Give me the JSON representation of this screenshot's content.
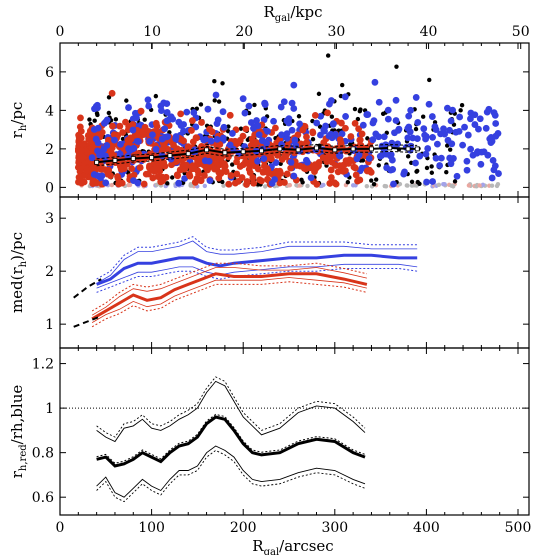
{
  "colors": {
    "red": "#d8341a",
    "blue": "#3540e0",
    "black": "#000000",
    "gray": "#b8b8b8",
    "pink": "#e9a7a0",
    "lavender": "#a3a3e8"
  },
  "top_axis": {
    "label": "R_gal/kpc",
    "ticks": [
      "0",
      "10",
      "20",
      "30",
      "40",
      "50"
    ],
    "values": [
      0,
      10,
      20,
      30,
      40,
      50
    ]
  },
  "bottom_axis": {
    "label": "R_gal/arcsec",
    "ticks": [
      "0",
      "100",
      "200",
      "300",
      "400",
      "500"
    ],
    "values": [
      0,
      100,
      200,
      300,
      400,
      500
    ]
  },
  "chart_data": [
    {
      "type": "scatter",
      "ylabel": "r_h/pc",
      "xlim": [
        0,
        512
      ],
      "ylim": [
        -0.5,
        7.5
      ],
      "yticks": [
        0,
        2,
        4,
        6
      ],
      "series": [
        {
          "color": "red",
          "n": 700,
          "x_range": [
            20,
            340
          ],
          "y_mean": 1.6,
          "y_sd": 0.8
        },
        {
          "color": "blue",
          "n": 420,
          "x_range": [
            35,
            480
          ],
          "y_mean": 2.3,
          "y_sd": 1.1
        },
        {
          "color": "black",
          "n": 320,
          "x_range": [
            30,
            440
          ],
          "y_mean": 2.2,
          "y_sd": 1.4
        }
      ],
      "running_median": {
        "x": [
          40,
          60,
          80,
          100,
          120,
          140,
          160,
          180,
          200,
          220,
          240,
          260,
          280,
          300,
          320,
          340,
          360,
          380,
          390
        ],
        "y": [
          1.3,
          1.4,
          1.5,
          1.55,
          1.65,
          1.75,
          1.95,
          1.8,
          1.85,
          1.9,
          2.0,
          1.95,
          2.05,
          1.95,
          2.0,
          2.0,
          2.05,
          2.0,
          2.0
        ]
      }
    },
    {
      "type": "line",
      "ylabel": "med(r_h)/pc",
      "xlim": [
        0,
        512
      ],
      "ylim": [
        0.55,
        3.4
      ],
      "yticks": [
        1,
        2,
        3
      ],
      "series": [
        {
          "color": "blue",
          "x": [
            40,
            55,
            70,
            85,
            100,
            115,
            130,
            145,
            160,
            175,
            190,
            220,
            250,
            280,
            310,
            340,
            370,
            390
          ],
          "y": [
            1.75,
            1.85,
            2.05,
            2.15,
            2.15,
            2.2,
            2.25,
            2.25,
            2.15,
            2.1,
            2.15,
            2.2,
            2.25,
            2.25,
            2.3,
            2.3,
            2.25,
            2.25
          ],
          "upper": [
            1.85,
            2.0,
            2.3,
            2.45,
            2.45,
            2.5,
            2.55,
            2.65,
            2.45,
            2.4,
            2.4,
            2.45,
            2.55,
            2.55,
            2.55,
            2.5,
            2.5,
            2.5
          ],
          "lower": [
            1.6,
            1.7,
            1.8,
            1.9,
            1.9,
            1.95,
            2.0,
            2.0,
            1.9,
            1.85,
            1.9,
            1.95,
            2.0,
            2.0,
            2.05,
            2.05,
            2.05,
            2.0
          ]
        },
        {
          "color": "red",
          "x": [
            35,
            50,
            65,
            80,
            95,
            110,
            125,
            140,
            155,
            170,
            190,
            220,
            250,
            280,
            310,
            335
          ],
          "y": [
            1.1,
            1.25,
            1.4,
            1.55,
            1.45,
            1.5,
            1.65,
            1.75,
            1.85,
            1.95,
            1.9,
            1.9,
            1.95,
            1.95,
            1.85,
            1.75
          ],
          "upper": [
            1.25,
            1.4,
            1.6,
            1.75,
            1.7,
            1.75,
            1.85,
            1.95,
            2.05,
            2.15,
            2.15,
            2.1,
            2.1,
            2.15,
            2.05,
            1.95
          ],
          "lower": [
            0.95,
            1.1,
            1.2,
            1.35,
            1.25,
            1.3,
            1.45,
            1.55,
            1.65,
            1.75,
            1.75,
            1.75,
            1.8,
            1.75,
            1.7,
            1.6
          ]
        },
        {
          "color": "black",
          "style": "dashed",
          "x": [
            15,
            30,
            45
          ],
          "y": [
            1.5,
            1.7,
            1.85
          ]
        },
        {
          "color": "black",
          "style": "dashed",
          "x": [
            15,
            30,
            45
          ],
          "y": [
            0.95,
            1.05,
            1.15
          ]
        }
      ]
    },
    {
      "type": "line",
      "ylabel": "r_h,red/r_h,blue",
      "xlim": [
        0,
        512
      ],
      "ylim": [
        0.52,
        1.27
      ],
      "yticks": [
        0.6,
        0.8,
        1,
        1.2
      ],
      "reference_line": 1,
      "series": [
        {
          "color": "black",
          "x": [
            40,
            50,
            60,
            70,
            80,
            90,
            100,
            110,
            120,
            130,
            140,
            150,
            160,
            170,
            180,
            190,
            200,
            210,
            220,
            240,
            260,
            280,
            300,
            320,
            333
          ],
          "y": [
            0.77,
            0.78,
            0.74,
            0.75,
            0.77,
            0.8,
            0.78,
            0.76,
            0.8,
            0.83,
            0.84,
            0.87,
            0.93,
            0.96,
            0.95,
            0.9,
            0.84,
            0.8,
            0.79,
            0.8,
            0.84,
            0.86,
            0.85,
            0.8,
            0.78
          ],
          "upper": [
            0.92,
            0.89,
            0.87,
            0.93,
            0.94,
            0.97,
            0.93,
            0.92,
            0.94,
            0.97,
            0.99,
            1.02,
            1.09,
            1.14,
            1.12,
            1.05,
            0.98,
            0.94,
            0.9,
            0.93,
            1.0,
            1.03,
            1.02,
            0.96,
            0.91
          ],
          "lower": [
            0.63,
            0.67,
            0.6,
            0.58,
            0.62,
            0.66,
            0.63,
            0.61,
            0.66,
            0.7,
            0.7,
            0.72,
            0.78,
            0.81,
            0.79,
            0.76,
            0.7,
            0.66,
            0.65,
            0.66,
            0.69,
            0.71,
            0.7,
            0.66,
            0.64
          ]
        }
      ]
    }
  ]
}
